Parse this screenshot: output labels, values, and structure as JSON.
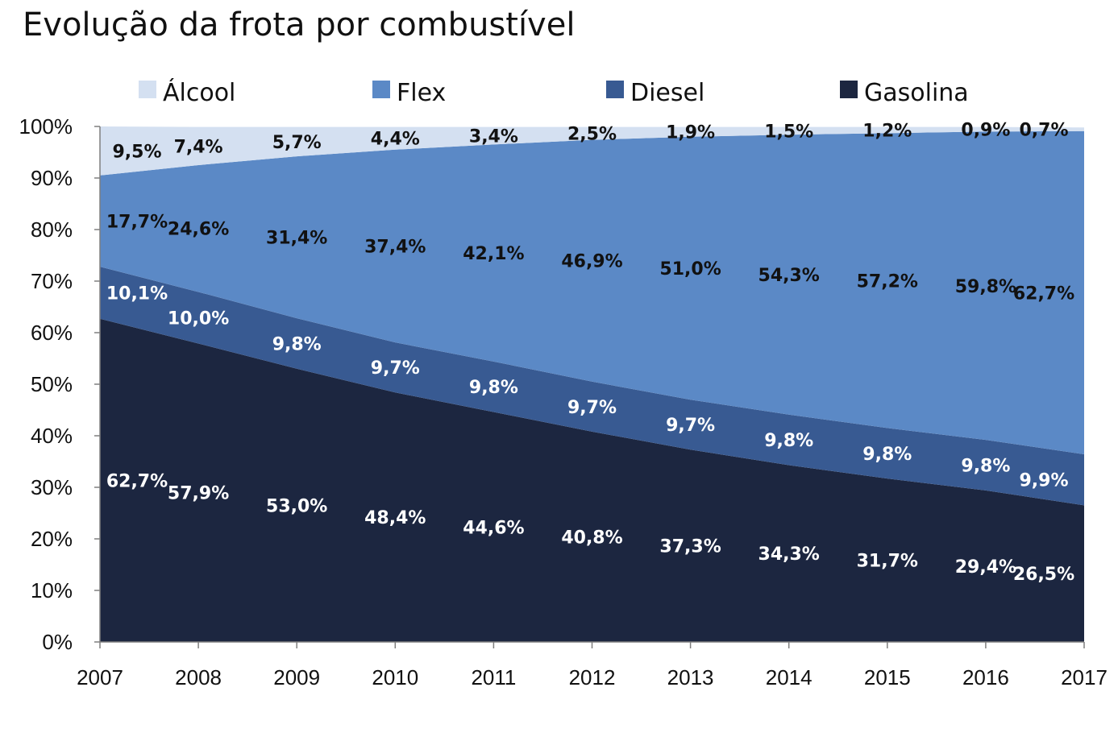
{
  "chart_data": {
    "type": "area",
    "stacked": true,
    "title": "Evolução da frota por combustível",
    "xlabel": "",
    "ylabel": "",
    "categories": [
      "2007",
      "2008",
      "2009",
      "2010",
      "2011",
      "2012",
      "2013",
      "2014",
      "2015",
      "2016",
      "2017"
    ],
    "y_ticks": [
      "0%",
      "10%",
      "20%",
      "30%",
      "40%",
      "50%",
      "60%",
      "70%",
      "80%",
      "90%",
      "100%"
    ],
    "ylim": [
      0,
      100
    ],
    "legend_position": "top",
    "series": [
      {
        "name": "Gasolina",
        "color": "#1c2640",
        "label_color": "#ffffff",
        "values": [
          62.7,
          57.9,
          53.0,
          48.4,
          44.6,
          40.8,
          37.3,
          34.3,
          31.7,
          29.4,
          26.5
        ],
        "labels": [
          "62,7%",
          "57,9%",
          "53,0%",
          "48,4%",
          "44,6%",
          "40,8%",
          "37,3%",
          "34,3%",
          "31,7%",
          "29,4%",
          "26,5%"
        ]
      },
      {
        "name": "Diesel",
        "color": "#385a92",
        "label_color": "#ffffff",
        "values": [
          10.1,
          10.0,
          9.8,
          9.7,
          9.8,
          9.7,
          9.7,
          9.8,
          9.8,
          9.8,
          9.9
        ],
        "labels": [
          "10,1%",
          "10,0%",
          "9,8%",
          "9,7%",
          "9,8%",
          "9,7%",
          "9,7%",
          "9,8%",
          "9,8%",
          "9,8%",
          "9,9%"
        ]
      },
      {
        "name": "Flex",
        "color": "#5b89c6",
        "label_color": "#111111",
        "values": [
          17.7,
          24.6,
          31.4,
          37.4,
          42.1,
          46.9,
          51.0,
          54.3,
          57.2,
          59.8,
          62.7
        ],
        "labels": [
          "17,7%",
          "24,6%",
          "31,4%",
          "37,4%",
          "42,1%",
          "46,9%",
          "51,0%",
          "54,3%",
          "57,2%",
          "59,8%",
          "62,7%"
        ]
      },
      {
        "name": "Álcool",
        "color": "#d4e0f1",
        "label_color": "#111111",
        "values": [
          9.5,
          7.4,
          5.7,
          4.4,
          3.4,
          2.5,
          1.9,
          1.5,
          1.2,
          0.9,
          0.7
        ],
        "labels": [
          "9,5%",
          "7,4%",
          "5,7%",
          "4,4%",
          "3,4%",
          "2,5%",
          "1,9%",
          "1,5%",
          "1,2%",
          "0,9%",
          "0,7%"
        ]
      }
    ],
    "legend_order": [
      "Álcool",
      "Flex",
      "Diesel",
      "Gasolina"
    ]
  }
}
